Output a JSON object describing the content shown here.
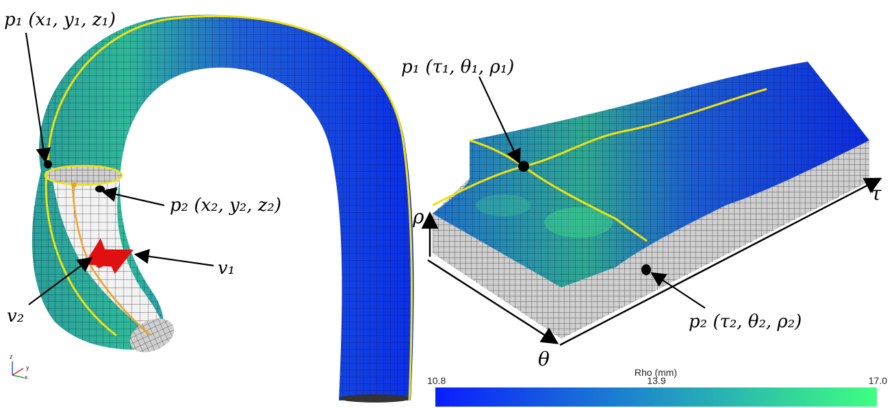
{
  "labels": {
    "p1_xyz": "p₁ (x₁, y₁, z₁)",
    "p2_xyz": "p₂ (x₂, y₂, z₂)",
    "v1": "v₁",
    "v2": "v₂",
    "p1_tau": "p₁ (τ₁, θ₁, ρ₁)",
    "p2_tau": "p₂ (τ₂, θ₂, ρ₂)",
    "tau": "τ",
    "rho": "ρ",
    "theta": "θ"
  },
  "axes_triad": {
    "z": "z",
    "y": "y",
    "x": "x"
  },
  "colorbar": {
    "title": "Rho (mm)",
    "min": "10.8",
    "mid": "13.9",
    "max": "17.0",
    "color_low": "#0a1dff",
    "color_mid": "#1f93c6",
    "color_high": "#3fff80"
  },
  "colors": {
    "centerline": "#f2e20a",
    "inner_line": "#f0a020",
    "vector": "#e01010",
    "mesh_gray": "#cfcfcf"
  }
}
